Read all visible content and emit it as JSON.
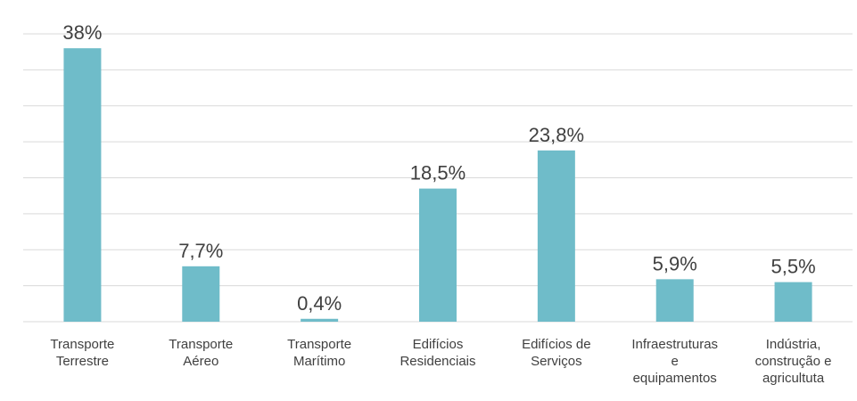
{
  "chart_data": {
    "type": "bar",
    "categories": [
      "Transporte Terrestre",
      "Transporte Aéreo",
      "Transporte Marítimo",
      "Edifícios Residenciais",
      "Edifícios de Serviços",
      "Infraestruturas e equipamentos",
      "Indústria, construção e agricultuta"
    ],
    "values": [
      38,
      7.7,
      0.4,
      18.5,
      23.8,
      5.9,
      5.5
    ],
    "value_labels": [
      "38%",
      "7,7%",
      "0,4%",
      "18,5%",
      "23,8%",
      "5,9%",
      "5,5%"
    ],
    "color": "#6fbcc9",
    "ylim": [
      0,
      40
    ],
    "yticks": [
      0,
      5,
      10,
      15,
      20,
      25,
      30,
      35,
      40
    ],
    "grid": true
  }
}
